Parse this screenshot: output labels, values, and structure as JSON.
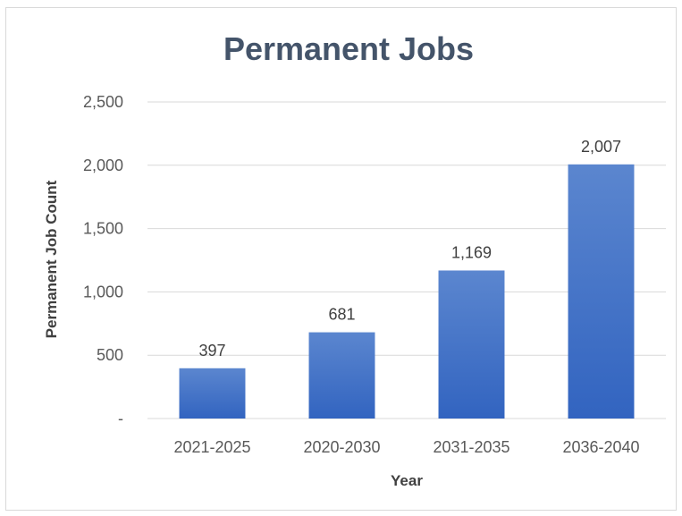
{
  "chart_data": {
    "type": "bar",
    "title": "Permanent Jobs",
    "xlabel": "Year",
    "ylabel": "Permanent Job Count",
    "categories": [
      "2021-2025",
      "2020-2030",
      "2031-2035",
      "2036-2040"
    ],
    "values": [
      397,
      681,
      1169,
      2007
    ],
    "value_labels": [
      "397",
      "681",
      "1,169",
      "2,007"
    ],
    "ylim": [
      0,
      2500
    ],
    "yticks": [
      0,
      500,
      1000,
      1500,
      2000,
      2500
    ],
    "ytick_labels": [
      "-",
      "500",
      "1,000",
      "1,500",
      "2,000",
      "2,500"
    ],
    "grid": true,
    "legend": "none",
    "bar_color_top": "#5b86cf",
    "bar_color_bottom": "#3264c0"
  }
}
